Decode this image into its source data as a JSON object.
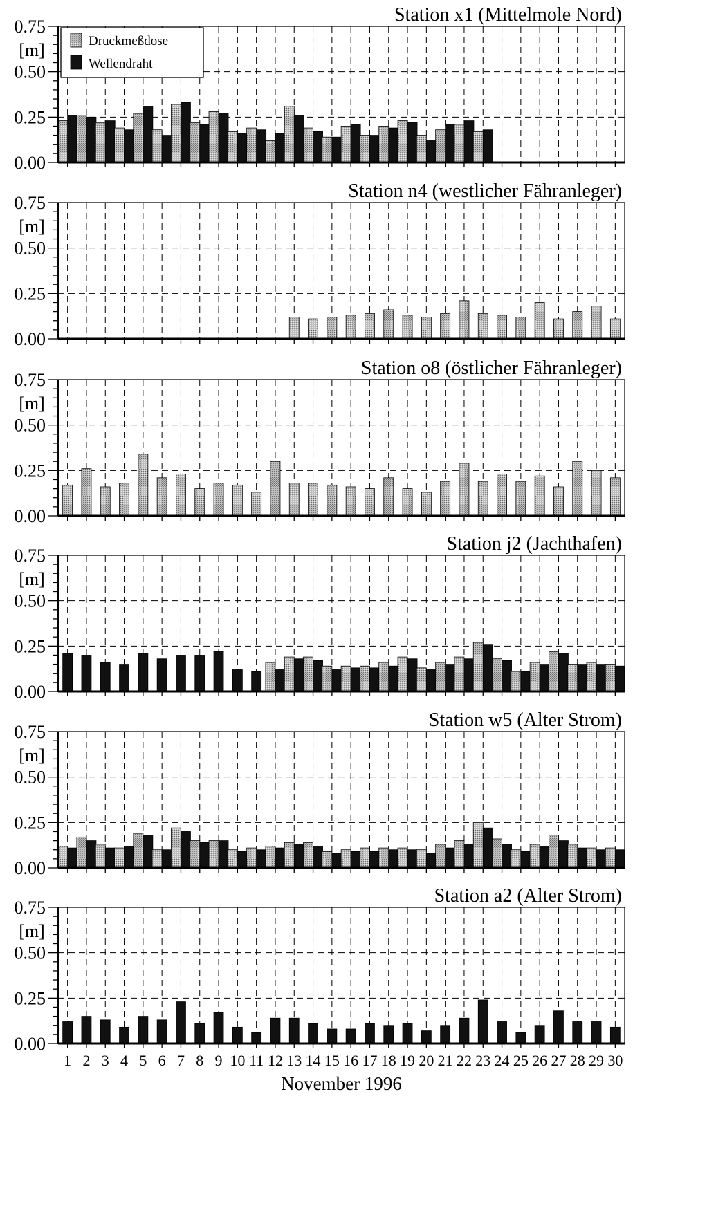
{
  "figure": {
    "xlabel": "November 1996",
    "legend": [
      "Druckmeßdose",
      "Wellendraht"
    ],
    "ytick_labels": [
      "0.00",
      "0.25",
      "0.50",
      "0.75"
    ],
    "yunit": "[m]",
    "days": [
      1,
      2,
      3,
      4,
      5,
      6,
      7,
      8,
      9,
      10,
      11,
      12,
      13,
      14,
      15,
      16,
      17,
      18,
      19,
      20,
      21,
      22,
      23,
      24,
      25,
      26,
      27,
      28,
      29,
      30
    ]
  },
  "chart_data": [
    {
      "type": "bar",
      "title": "Station x1 (Mittelmole Nord)",
      "ylim": [
        0,
        0.75
      ],
      "grid": true,
      "legend_position": "top-left",
      "categories": [
        1,
        2,
        3,
        4,
        5,
        6,
        7,
        8,
        9,
        10,
        11,
        12,
        13,
        14,
        15,
        16,
        17,
        18,
        19,
        20,
        21,
        22,
        23,
        24,
        25,
        26,
        27,
        28,
        29,
        30
      ],
      "series": [
        {
          "name": "Druckmeßdose",
          "values": [
            0.23,
            0.26,
            0.22,
            0.19,
            0.27,
            0.18,
            0.32,
            0.22,
            0.28,
            0.17,
            0.19,
            0.12,
            0.31,
            0.19,
            0.14,
            0.2,
            0.15,
            0.2,
            0.23,
            0.15,
            0.18,
            0.21,
            0.17,
            null,
            null,
            null,
            null,
            null,
            null,
            null
          ]
        },
        {
          "name": "Wellendraht",
          "values": [
            0.26,
            0.25,
            0.23,
            0.18,
            0.31,
            0.15,
            0.33,
            0.21,
            0.27,
            0.16,
            0.18,
            0.16,
            0.26,
            0.17,
            0.14,
            0.21,
            0.15,
            0.19,
            0.22,
            0.12,
            0.21,
            0.23,
            0.18,
            null,
            null,
            null,
            null,
            null,
            null,
            null
          ]
        }
      ]
    },
    {
      "type": "bar",
      "title": "Station n4 (westlicher Fähranleger)",
      "ylim": [
        0,
        0.75
      ],
      "grid": true,
      "categories": [
        1,
        2,
        3,
        4,
        5,
        6,
        7,
        8,
        9,
        10,
        11,
        12,
        13,
        14,
        15,
        16,
        17,
        18,
        19,
        20,
        21,
        22,
        23,
        24,
        25,
        26,
        27,
        28,
        29,
        30
      ],
      "series": [
        {
          "name": "Druckmeßdose",
          "values": [
            null,
            null,
            null,
            null,
            null,
            null,
            null,
            null,
            null,
            null,
            null,
            null,
            0.12,
            0.11,
            0.12,
            0.13,
            0.14,
            0.16,
            0.13,
            0.12,
            0.14,
            0.21,
            0.14,
            0.13,
            0.12,
            0.2,
            0.11,
            0.15,
            0.18,
            0.11
          ]
        },
        {
          "name": "Wellendraht",
          "values": [
            null,
            null,
            null,
            null,
            null,
            null,
            null,
            null,
            null,
            null,
            null,
            null,
            null,
            null,
            null,
            null,
            null,
            null,
            null,
            null,
            null,
            null,
            null,
            null,
            null,
            null,
            null,
            null,
            null,
            null
          ]
        }
      ]
    },
    {
      "type": "bar",
      "title": "Station o8 (östlicher Fähranleger)",
      "ylim": [
        0,
        0.75
      ],
      "grid": true,
      "categories": [
        1,
        2,
        3,
        4,
        5,
        6,
        7,
        8,
        9,
        10,
        11,
        12,
        13,
        14,
        15,
        16,
        17,
        18,
        19,
        20,
        21,
        22,
        23,
        24,
        25,
        26,
        27,
        28,
        29,
        30
      ],
      "series": [
        {
          "name": "Druckmeßdose",
          "values": [
            0.17,
            0.26,
            0.16,
            0.18,
            0.34,
            0.21,
            0.23,
            0.15,
            0.18,
            0.17,
            0.13,
            0.3,
            0.18,
            0.18,
            0.17,
            0.16,
            0.15,
            0.21,
            0.15,
            0.13,
            0.19,
            0.29,
            0.19,
            0.23,
            0.19,
            0.22,
            0.16,
            0.3,
            0.25,
            0.21
          ]
        },
        {
          "name": "Wellendraht",
          "values": [
            null,
            null,
            null,
            null,
            null,
            null,
            null,
            null,
            null,
            null,
            null,
            null,
            null,
            null,
            null,
            null,
            null,
            null,
            null,
            null,
            null,
            null,
            null,
            null,
            null,
            null,
            null,
            null,
            null,
            null
          ]
        }
      ]
    },
    {
      "type": "bar",
      "title": "Station j2 (Jachthafen)",
      "ylim": [
        0,
        0.75
      ],
      "grid": true,
      "categories": [
        1,
        2,
        3,
        4,
        5,
        6,
        7,
        8,
        9,
        10,
        11,
        12,
        13,
        14,
        15,
        16,
        17,
        18,
        19,
        20,
        21,
        22,
        23,
        24,
        25,
        26,
        27,
        28,
        29,
        30
      ],
      "series": [
        {
          "name": "Druckmeßdose",
          "values": [
            null,
            null,
            null,
            null,
            null,
            null,
            null,
            null,
            null,
            null,
            null,
            0.16,
            0.19,
            0.19,
            0.14,
            0.14,
            0.14,
            0.16,
            0.19,
            0.13,
            0.16,
            0.19,
            0.27,
            0.18,
            0.11,
            0.16,
            0.22,
            0.15,
            0.16,
            0.15
          ]
        },
        {
          "name": "Wellendraht",
          "values": [
            0.21,
            0.2,
            0.16,
            0.15,
            0.21,
            0.18,
            0.2,
            0.2,
            0.22,
            0.12,
            0.11,
            0.12,
            0.18,
            0.17,
            0.12,
            0.13,
            0.13,
            0.14,
            0.18,
            0.12,
            0.15,
            0.18,
            0.26,
            0.17,
            0.11,
            0.15,
            0.21,
            0.15,
            0.15,
            0.14
          ]
        }
      ]
    },
    {
      "type": "bar",
      "title": "Station w5 (Alter Strom)",
      "ylim": [
        0,
        0.75
      ],
      "grid": true,
      "categories": [
        1,
        2,
        3,
        4,
        5,
        6,
        7,
        8,
        9,
        10,
        11,
        12,
        13,
        14,
        15,
        16,
        17,
        18,
        19,
        20,
        21,
        22,
        23,
        24,
        25,
        26,
        27,
        28,
        29,
        30
      ],
      "series": [
        {
          "name": "Druckmeßdose",
          "values": [
            0.12,
            0.17,
            0.13,
            0.11,
            0.19,
            0.1,
            0.22,
            0.15,
            0.15,
            0.1,
            0.11,
            0.12,
            0.14,
            0.14,
            0.09,
            0.1,
            0.11,
            0.11,
            0.11,
            0.1,
            0.13,
            0.15,
            0.25,
            0.16,
            0.1,
            0.13,
            0.18,
            0.13,
            0.11,
            0.11
          ]
        },
        {
          "name": "Wellendraht",
          "values": [
            0.11,
            0.15,
            0.11,
            0.12,
            0.18,
            0.1,
            0.2,
            0.14,
            0.15,
            0.09,
            0.1,
            0.11,
            0.13,
            0.12,
            0.08,
            0.09,
            0.09,
            0.1,
            0.1,
            0.08,
            0.11,
            0.13,
            0.22,
            0.13,
            0.09,
            0.12,
            0.15,
            0.11,
            0.1,
            0.1
          ]
        }
      ]
    },
    {
      "type": "bar",
      "title": "Station a2 (Alter Strom)",
      "ylim": [
        0,
        0.75
      ],
      "grid": true,
      "categories": [
        1,
        2,
        3,
        4,
        5,
        6,
        7,
        8,
        9,
        10,
        11,
        12,
        13,
        14,
        15,
        16,
        17,
        18,
        19,
        20,
        21,
        22,
        23,
        24,
        25,
        26,
        27,
        28,
        29,
        30
      ],
      "series": [
        {
          "name": "Druckmeßdose",
          "values": [
            null,
            null,
            null,
            null,
            null,
            null,
            null,
            null,
            null,
            null,
            null,
            null,
            null,
            null,
            null,
            null,
            null,
            null,
            null,
            null,
            null,
            null,
            null,
            null,
            null,
            null,
            null,
            null,
            null,
            null
          ]
        },
        {
          "name": "Wellendraht",
          "values": [
            0.12,
            0.15,
            0.13,
            0.09,
            0.15,
            0.13,
            0.23,
            0.11,
            0.17,
            0.09,
            0.06,
            0.14,
            0.14,
            0.11,
            0.08,
            0.08,
            0.11,
            0.1,
            0.11,
            0.07,
            0.1,
            0.14,
            0.24,
            0.12,
            0.06,
            0.1,
            0.18,
            0.12,
            0.12,
            0.09
          ]
        }
      ]
    }
  ]
}
